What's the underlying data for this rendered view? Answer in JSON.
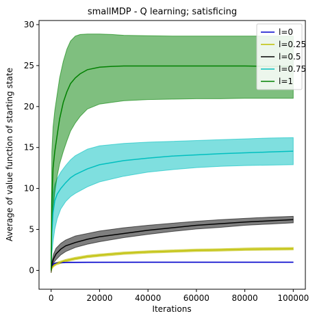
{
  "chart_data": {
    "type": "line",
    "title": "smallMDP - Q learning; satisficing",
    "xlabel": "Iterations",
    "ylabel": "Average of value function of starting state",
    "xlim": [
      -5000,
      105000
    ],
    "ylim": [
      -2.3,
      30.5
    ],
    "xticks": [
      0,
      20000,
      40000,
      60000,
      80000,
      100000
    ],
    "yticks": [
      0,
      5,
      10,
      15,
      20,
      25,
      30
    ],
    "grid": false,
    "legend_position": "top-right",
    "series": [
      {
        "name": "l=0",
        "color": "#0000cc",
        "band_color": "#0000cc",
        "x": [
          0,
          300,
          1000,
          2000,
          4000,
          6000,
          10000,
          20000,
          40000,
          60000,
          80000,
          100000
        ],
        "mean": [
          0,
          0.5,
          0.8,
          0.9,
          0.95,
          0.97,
          0.98,
          0.99,
          1.0,
          1.0,
          1.0,
          1.0
        ],
        "lower": [
          0,
          0.45,
          0.75,
          0.85,
          0.9,
          0.93,
          0.95,
          0.97,
          0.98,
          0.98,
          0.98,
          0.98
        ],
        "upper": [
          0,
          0.55,
          0.85,
          0.95,
          1.0,
          1.01,
          1.01,
          1.01,
          1.02,
          1.02,
          1.02,
          1.02
        ]
      },
      {
        "name": "l=0.25",
        "color": "#bfbf00",
        "band_color": "#bfbf00",
        "x": [
          0,
          300,
          1000,
          2000,
          4000,
          6000,
          10000,
          15000,
          20000,
          30000,
          40000,
          50000,
          60000,
          70000,
          80000,
          90000,
          100000
        ],
        "mean": [
          0,
          0.3,
          0.6,
          0.8,
          1.0,
          1.2,
          1.45,
          1.7,
          1.85,
          2.1,
          2.25,
          2.35,
          2.45,
          2.5,
          2.58,
          2.62,
          2.65
        ],
        "lower": [
          -0.3,
          0.15,
          0.45,
          0.65,
          0.85,
          1.05,
          1.3,
          1.55,
          1.7,
          1.95,
          2.1,
          2.2,
          2.3,
          2.35,
          2.42,
          2.46,
          2.5
        ],
        "upper": [
          0.3,
          0.45,
          0.75,
          0.95,
          1.15,
          1.35,
          1.6,
          1.85,
          2.0,
          2.25,
          2.4,
          2.5,
          2.6,
          2.65,
          2.73,
          2.78,
          2.8
        ]
      },
      {
        "name": "l=0.5",
        "color": "#000000",
        "band_color": "#000000",
        "x": [
          0,
          300,
          1000,
          2000,
          4000,
          6000,
          10000,
          15000,
          20000,
          30000,
          40000,
          50000,
          60000,
          70000,
          80000,
          90000,
          100000
        ],
        "mean": [
          0,
          0.7,
          1.4,
          2.0,
          2.6,
          3.0,
          3.4,
          3.8,
          4.1,
          4.5,
          4.9,
          5.2,
          5.5,
          5.7,
          5.9,
          6.05,
          6.2
        ],
        "lower": [
          -0.3,
          0.3,
          0.9,
          1.3,
          1.9,
          2.3,
          2.8,
          3.2,
          3.5,
          4.0,
          4.4,
          4.75,
          5.05,
          5.25,
          5.5,
          5.65,
          5.8
        ],
        "upper": [
          0.5,
          1.0,
          2.0,
          2.7,
          3.3,
          3.7,
          4.2,
          4.5,
          4.8,
          5.2,
          5.5,
          5.75,
          6.0,
          6.2,
          6.35,
          6.5,
          6.6
        ]
      },
      {
        "name": "l=0.75",
        "color": "#00bfbf",
        "band_color": "#00bfbf",
        "x": [
          0,
          300,
          800,
          1500,
          2500,
          4000,
          6000,
          8000,
          10000,
          15000,
          20000,
          30000,
          40000,
          50000,
          60000,
          70000,
          80000,
          90000,
          100000
        ],
        "mean": [
          1.0,
          4.5,
          7.0,
          8.5,
          9.3,
          10.0,
          10.7,
          11.3,
          11.7,
          12.4,
          12.9,
          13.4,
          13.7,
          13.95,
          14.1,
          14.25,
          14.35,
          14.45,
          14.55
        ],
        "lower": [
          0,
          2.0,
          3.5,
          5.0,
          6.3,
          7.5,
          8.4,
          9.0,
          9.4,
          10.2,
          10.8,
          11.5,
          12.0,
          12.3,
          12.55,
          12.7,
          12.8,
          12.85,
          12.9
        ],
        "upper": [
          1.5,
          6.5,
          9.5,
          10.5,
          11.2,
          12.0,
          12.8,
          13.5,
          14.0,
          14.8,
          15.2,
          15.5,
          15.65,
          15.75,
          15.85,
          15.95,
          16.05,
          16.15,
          16.2
        ]
      },
      {
        "name": "l=1",
        "color": "#008000",
        "band_color": "#008000",
        "x": [
          0,
          300,
          800,
          1500,
          2500,
          3500,
          5000,
          6500,
          8000,
          10000,
          12000,
          15000,
          20000,
          25000,
          30000,
          40000,
          50000,
          60000,
          70000,
          80000,
          90000,
          100000
        ],
        "mean": [
          0,
          8.5,
          12.5,
          14.5,
          16.5,
          18.5,
          20.5,
          21.8,
          22.8,
          23.5,
          24.0,
          24.5,
          24.8,
          24.9,
          24.95,
          24.95,
          24.95,
          24.95,
          24.95,
          24.95,
          24.9,
          24.9
        ],
        "lower": [
          0,
          5.0,
          7.5,
          9.5,
          11.5,
          13.0,
          14.5,
          15.8,
          17.0,
          18.0,
          18.8,
          19.7,
          20.3,
          20.5,
          20.7,
          20.85,
          20.9,
          20.95,
          20.95,
          21.0,
          21.0,
          21.0
        ],
        "upper": [
          2.0,
          14.5,
          17.5,
          19.5,
          21.5,
          23.5,
          25.5,
          27.0,
          28.0,
          28.6,
          28.8,
          28.85,
          28.85,
          28.8,
          28.7,
          28.65,
          28.6,
          28.6,
          28.6,
          28.6,
          28.6,
          28.6
        ]
      }
    ]
  }
}
